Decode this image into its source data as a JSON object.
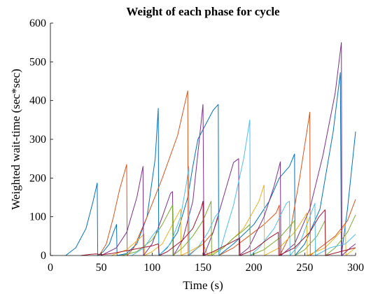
{
  "chart_data": {
    "type": "line",
    "title": "Weight of each phase for cycle",
    "xlabel": "Time (s)",
    "ylabel": "Weighted wait-time (sec*sec)",
    "xlim": [
      0,
      300
    ],
    "ylim": [
      0,
      600
    ],
    "xticks": [
      0,
      50,
      100,
      150,
      200,
      250,
      300
    ],
    "yticks": [
      0,
      100,
      200,
      300,
      400,
      500,
      600
    ],
    "grid": false,
    "box": "left-bottom",
    "colors": [
      "#0072BD",
      "#D95319",
      "#EDB120",
      "#7E2F8E",
      "#77AC30",
      "#4DBEEE",
      "#A2142F"
    ],
    "series": [
      {
        "color": "#0072BD",
        "points": [
          [
            15,
            0
          ],
          [
            25,
            20
          ],
          [
            35,
            70
          ],
          [
            42,
            140
          ],
          [
            46,
            187
          ],
          [
            46.5,
            0
          ],
          [
            52,
            10
          ],
          [
            58,
            30
          ],
          [
            62,
            60
          ],
          [
            65,
            80
          ],
          [
            65.5,
            0
          ],
          [
            75,
            5
          ],
          [
            85,
            30
          ],
          [
            95,
            100
          ],
          [
            103,
            250
          ],
          [
            106,
            380
          ],
          [
            106.5,
            0
          ],
          [
            115,
            20
          ],
          [
            125,
            60
          ],
          [
            135,
            150
          ],
          [
            140,
            230
          ],
          [
            145,
            300
          ],
          [
            160,
            375
          ],
          [
            165,
            390
          ],
          [
            165.5,
            0
          ],
          [
            180,
            30
          ],
          [
            200,
            80
          ],
          [
            215,
            140
          ],
          [
            225,
            200
          ],
          [
            235,
            230
          ],
          [
            240,
            262
          ],
          [
            240.5,
            0
          ],
          [
            250,
            30
          ],
          [
            265,
            120
          ],
          [
            278,
            320
          ],
          [
            285,
            472
          ],
          [
            286,
            0
          ],
          [
            292,
            120
          ],
          [
            300,
            320
          ]
        ]
      },
      {
        "color": "#D95319",
        "points": [
          [
            48,
            0
          ],
          [
            55,
            30
          ],
          [
            62,
            100
          ],
          [
            68,
            170
          ],
          [
            75,
            235
          ],
          [
            75.5,
            0
          ],
          [
            82,
            20
          ],
          [
            95,
            100
          ],
          [
            110,
            200
          ],
          [
            125,
            310
          ],
          [
            135,
            425
          ],
          [
            135.5,
            0
          ],
          [
            140,
            10
          ],
          [
            150,
            30
          ],
          [
            160,
            60
          ],
          [
            165,
            100
          ],
          [
            165.5,
            0
          ],
          [
            180,
            20
          ],
          [
            195,
            50
          ],
          [
            210,
            80
          ],
          [
            222,
            110
          ],
          [
            225,
            130
          ],
          [
            225.5,
            0
          ],
          [
            235,
            50
          ],
          [
            245,
            200
          ],
          [
            255,
            370
          ],
          [
            255.5,
            0
          ],
          [
            265,
            20
          ],
          [
            280,
            50
          ],
          [
            292,
            90
          ],
          [
            300,
            145
          ]
        ]
      },
      {
        "color": "#EDB120",
        "points": [
          [
            60,
            0
          ],
          [
            75,
            15
          ],
          [
            88,
            45
          ],
          [
            92,
            55
          ],
          [
            92.5,
            0
          ],
          [
            100,
            10
          ],
          [
            110,
            30
          ],
          [
            120,
            80
          ],
          [
            128,
            120
          ],
          [
            128.5,
            0
          ],
          [
            140,
            15
          ],
          [
            150,
            30
          ],
          [
            155,
            0
          ],
          [
            170,
            20
          ],
          [
            190,
            70
          ],
          [
            205,
            140
          ],
          [
            210,
            182
          ],
          [
            210.5,
            0
          ],
          [
            225,
            20
          ],
          [
            240,
            60
          ],
          [
            250,
            100
          ],
          [
            252,
            110
          ],
          [
            252.5,
            0
          ],
          [
            270,
            20
          ],
          [
            285,
            60
          ],
          [
            290,
            80
          ],
          [
            290.5,
            0
          ],
          [
            300,
            20
          ]
        ]
      },
      {
        "color": "#7E2F8E",
        "points": [
          [
            50,
            0
          ],
          [
            65,
            20
          ],
          [
            75,
            60
          ],
          [
            85,
            150
          ],
          [
            91,
            230
          ],
          [
            91.5,
            0
          ],
          [
            100,
            30
          ],
          [
            110,
            100
          ],
          [
            118,
            160
          ],
          [
            120,
            165
          ],
          [
            121,
            0
          ],
          [
            130,
            40
          ],
          [
            140,
            140
          ],
          [
            150,
            390
          ],
          [
            151,
            0
          ],
          [
            160,
            60
          ],
          [
            170,
            150
          ],
          [
            180,
            240
          ],
          [
            185,
            250
          ],
          [
            185.5,
            0
          ],
          [
            195,
            20
          ],
          [
            210,
            100
          ],
          [
            220,
            180
          ],
          [
            226,
            242
          ],
          [
            226.5,
            0
          ],
          [
            240,
            30
          ],
          [
            255,
            120
          ],
          [
            268,
            260
          ],
          [
            280,
            420
          ],
          [
            286,
            550
          ],
          [
            286.5,
            0
          ],
          [
            295,
            20
          ],
          [
            300,
            30
          ]
        ]
      },
      {
        "color": "#77AC30",
        "points": [
          [
            70,
            0
          ],
          [
            85,
            10
          ],
          [
            100,
            40
          ],
          [
            110,
            80
          ],
          [
            118,
            120
          ],
          [
            120,
            130
          ],
          [
            120.5,
            0
          ],
          [
            130,
            20
          ],
          [
            140,
            50
          ],
          [
            150,
            90
          ],
          [
            158,
            140
          ],
          [
            158.5,
            0
          ],
          [
            170,
            20
          ],
          [
            180,
            45
          ],
          [
            190,
            65
          ],
          [
            196,
            80
          ],
          [
            196.5,
            0
          ],
          [
            210,
            15
          ],
          [
            225,
            45
          ],
          [
            235,
            75
          ],
          [
            240,
            90
          ],
          [
            240.5,
            0
          ],
          [
            250,
            15
          ],
          [
            262,
            50
          ],
          [
            268,
            80
          ],
          [
            270,
            90
          ],
          [
            270.5,
            0
          ],
          [
            280,
            20
          ],
          [
            292,
            60
          ],
          [
            300,
            105
          ]
        ]
      },
      {
        "color": "#4DBEEE",
        "points": [
          [
            80,
            0
          ],
          [
            92,
            20
          ],
          [
            100,
            50
          ],
          [
            106,
            70
          ],
          [
            106.5,
            0
          ],
          [
            118,
            30
          ],
          [
            128,
            100
          ],
          [
            134,
            190
          ],
          [
            136,
            230
          ],
          [
            136.5,
            0
          ],
          [
            145,
            20
          ],
          [
            155,
            60
          ],
          [
            162,
            100
          ],
          [
            165,
            110
          ],
          [
            165.5,
            0
          ],
          [
            172,
            60
          ],
          [
            180,
            130
          ],
          [
            190,
            250
          ],
          [
            196,
            350
          ],
          [
            196.5,
            0
          ],
          [
            205,
            20
          ],
          [
            220,
            70
          ],
          [
            232,
            135
          ],
          [
            235,
            140
          ],
          [
            235.5,
            0
          ],
          [
            245,
            30
          ],
          [
            255,
            100
          ],
          [
            260,
            135
          ],
          [
            260.5,
            0
          ],
          [
            275,
            20
          ],
          [
            290,
            30
          ],
          [
            300,
            55
          ]
        ]
      },
      {
        "color": "#A2142F",
        "points": [
          [
            30,
            0
          ],
          [
            40,
            3
          ],
          [
            45,
            4
          ],
          [
            50,
            2
          ],
          [
            60,
            5
          ],
          [
            70,
            10
          ],
          [
            80,
            15
          ],
          [
            90,
            20
          ],
          [
            100,
            25
          ],
          [
            106,
            30
          ],
          [
            107,
            0
          ],
          [
            115,
            10
          ],
          [
            130,
            40
          ],
          [
            140,
            70
          ],
          [
            148,
            120
          ],
          [
            150,
            140
          ],
          [
            150.5,
            0
          ],
          [
            160,
            10
          ],
          [
            175,
            30
          ],
          [
            186,
            45
          ],
          [
            186.5,
            0
          ],
          [
            200,
            15
          ],
          [
            215,
            45
          ],
          [
            224,
            60
          ],
          [
            224.5,
            0
          ],
          [
            240,
            20
          ],
          [
            255,
            60
          ],
          [
            264,
            100
          ],
          [
            270,
            118
          ],
          [
            270.5,
            0
          ],
          [
            285,
            10
          ],
          [
            300,
            20
          ]
        ]
      }
    ]
  }
}
